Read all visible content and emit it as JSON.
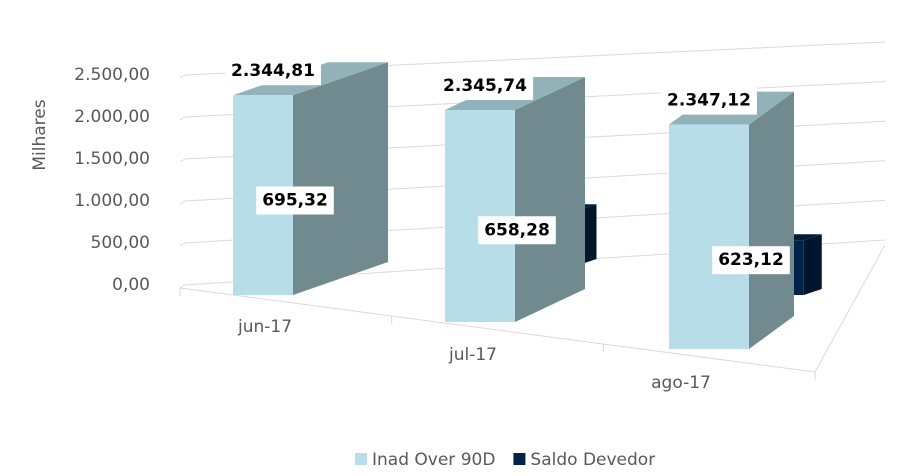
{
  "chart_data": {
    "type": "bar3d",
    "categories": [
      "jun-17",
      "jul-17",
      "ago-17"
    ],
    "series": [
      {
        "name": "Inad Over 90D",
        "color": "#b7dee8",
        "values": [
          2344.81,
          2345.74,
          2347.12
        ],
        "value_labels": [
          "2.344,81",
          "2.345,74",
          "2.347,12"
        ]
      },
      {
        "name": "Saldo Devedor",
        "color": "#002347",
        "values": [
          695.32,
          658.28,
          623.12
        ],
        "value_labels": [
          "695,32",
          "658,28",
          "623,12"
        ]
      }
    ],
    "y_label": "Milhares",
    "ylim": [
      0,
      2500
    ],
    "yticks": [
      {
        "value": 0,
        "label": "0,00"
      },
      {
        "value": 500,
        "label": "500,00"
      },
      {
        "value": 1000,
        "label": "1.000,00"
      },
      {
        "value": 1500,
        "label": "1.500,00"
      },
      {
        "value": 2000,
        "label": "2.000,00"
      },
      {
        "value": 2500,
        "label": "2.500,00"
      }
    ],
    "grid": true,
    "legend": "bottom"
  }
}
